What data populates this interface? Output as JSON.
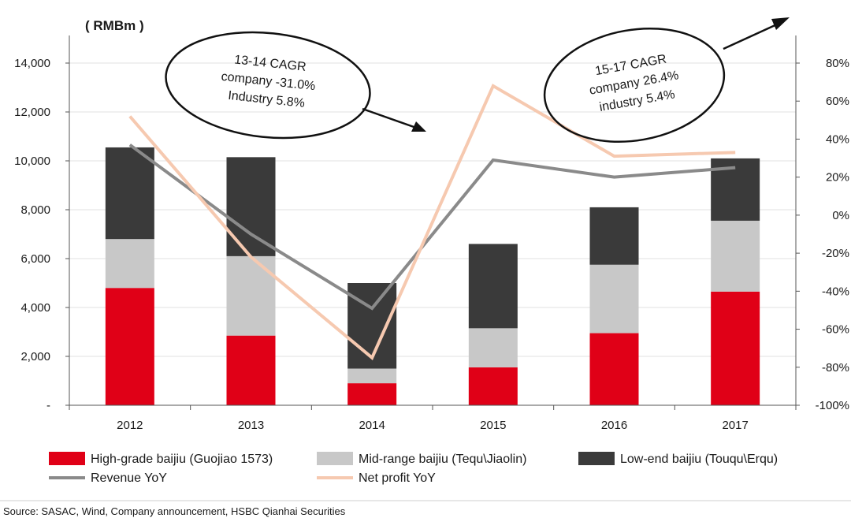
{
  "chart_data": {
    "type": "bar",
    "stacked": true,
    "unit_label": "( RMBm )",
    "categories": [
      "2012",
      "2013",
      "2014",
      "2015",
      "2016",
      "2017"
    ],
    "series": [
      {
        "name": "High-grade baijiu (Guojiao 1573)",
        "values": [
          4800,
          2850,
          900,
          1550,
          2950,
          4650
        ],
        "color": "#e00017"
      },
      {
        "name": "Mid-range baijiu (Tequ\\Jiaolin)",
        "values": [
          2000,
          3250,
          600,
          1600,
          2800,
          2900
        ],
        "color": "#c8c8c8"
      },
      {
        "name": "Low-end baijiu (Touqu\\Erqu)",
        "values": [
          3750,
          4050,
          3500,
          3450,
          2350,
          2550
        ],
        "color": "#3a3a3a"
      }
    ],
    "lines": [
      {
        "name": "Revenue YoY",
        "axis": "right",
        "values": [
          37,
          -10,
          -49,
          29,
          20,
          25
        ],
        "color": "#8a8a8a"
      },
      {
        "name": "Net profit YoY",
        "axis": "right",
        "values": [
          52,
          -22,
          -75,
          68,
          31,
          33
        ],
        "color": "#f6c9b0"
      }
    ],
    "y_left": {
      "min": 0,
      "max": 14000,
      "ticks": [
        0,
        2000,
        4000,
        6000,
        8000,
        10000,
        12000,
        14000
      ],
      "tick_labels": [
        "-",
        "2,000",
        "4,000",
        "6,000",
        "8,000",
        "10,000",
        "12,000",
        "14,000"
      ]
    },
    "y_right": {
      "min": -100,
      "max": 80,
      "ticks": [
        -100,
        -80,
        -60,
        -40,
        -20,
        0,
        20,
        40,
        60,
        80
      ],
      "tick_labels": [
        "-100%",
        "-80%",
        "-60%",
        "-40%",
        "-20%",
        "0%",
        "20%",
        "40%",
        "60%",
        "80%"
      ]
    },
    "grid": true,
    "legend_position": "bottom",
    "annotations": [
      {
        "lines": [
          "13-14 CAGR",
          "company -31.0%",
          "Industry 5.8%"
        ],
        "arrow": "down-right"
      },
      {
        "lines": [
          "15-17 CAGR",
          "company 26.4%",
          "industry 5.4%"
        ],
        "arrow": "up-right"
      }
    ],
    "source": "Source: SASAC, Wind, Company announcement, HSBC Qianhai Securities"
  }
}
